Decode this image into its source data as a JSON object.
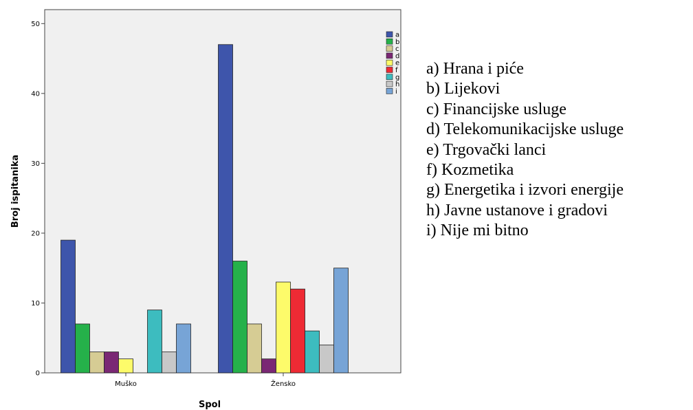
{
  "chart_data": {
    "type": "bar",
    "xlabel": "Spol",
    "ylabel": "Broj ispitanika",
    "ylim": [
      0,
      52
    ],
    "yticks": [
      0,
      10,
      20,
      30,
      40,
      50
    ],
    "categories": [
      "Muško",
      "Žensko"
    ],
    "legend_position": "right",
    "series": [
      {
        "name": "a",
        "color": "#3e55ab",
        "values": [
          19,
          47
        ]
      },
      {
        "name": "b",
        "color": "#25b14a",
        "values": [
          7,
          16
        ]
      },
      {
        "name": "c",
        "color": "#d6cc94",
        "values": [
          3,
          7
        ]
      },
      {
        "name": "d",
        "color": "#7a2874",
        "values": [
          3,
          2
        ]
      },
      {
        "name": "e",
        "color": "#fdfb6a",
        "values": [
          2,
          13
        ]
      },
      {
        "name": "f",
        "color": "#ee2a34",
        "values": [
          0,
          12
        ]
      },
      {
        "name": "g",
        "color": "#3dbcbf",
        "values": [
          9,
          6
        ]
      },
      {
        "name": "h",
        "color": "#c8c8c8",
        "values": [
          3,
          4
        ]
      },
      {
        "name": "i",
        "color": "#77a4d6",
        "values": [
          7,
          15
        ]
      }
    ]
  },
  "key": [
    "a) Hrana i piće",
    "b) Lijekovi",
    "c) Financijske usluge",
    "d) Telekomunikacijske usluge",
    "e) Trgovački lanci",
    "f) Kozmetika",
    "g) Energetika i izvori energije",
    "h) Javne ustanove i gradovi",
    "i) Nije mi bitno"
  ]
}
